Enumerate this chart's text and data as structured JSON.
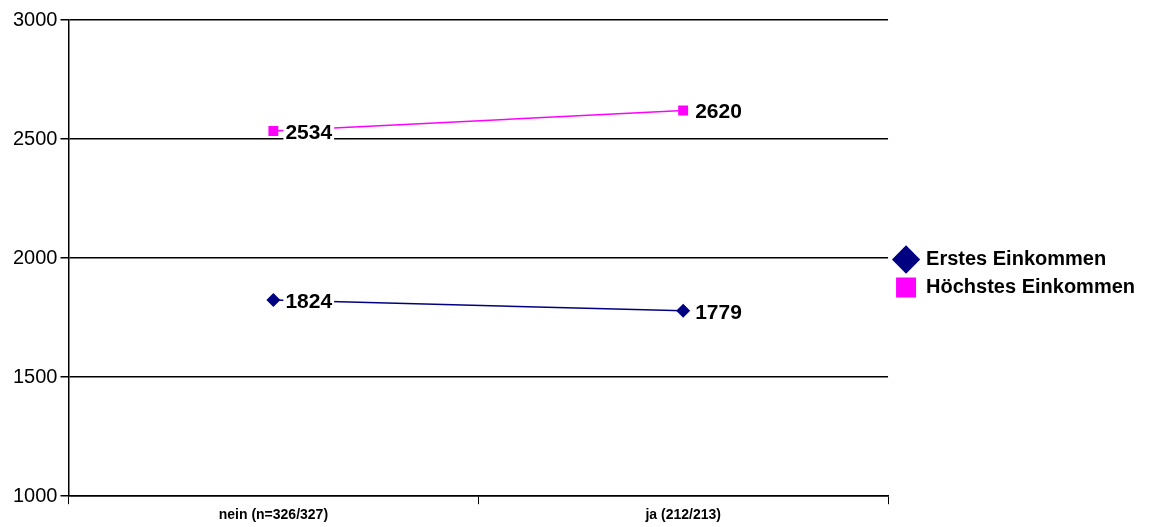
{
  "chart_data": {
    "type": "line",
    "categories": [
      "nein (n=326/327)",
      "ja (212/213)"
    ],
    "series": [
      {
        "name": "Erstes Einkommen",
        "color": "#000080",
        "marker": "diamond",
        "values": [
          1824,
          1779
        ]
      },
      {
        "name": "Höchstes Einkommen",
        "color": "#ff00ff",
        "marker": "square",
        "values": [
          2534,
          2620
        ]
      }
    ],
    "ylim": [
      1000,
      3000
    ],
    "yticks": [
      1000,
      1500,
      2000,
      2500,
      3000
    ],
    "grid": "y",
    "legend": "right",
    "data_labels": true
  }
}
